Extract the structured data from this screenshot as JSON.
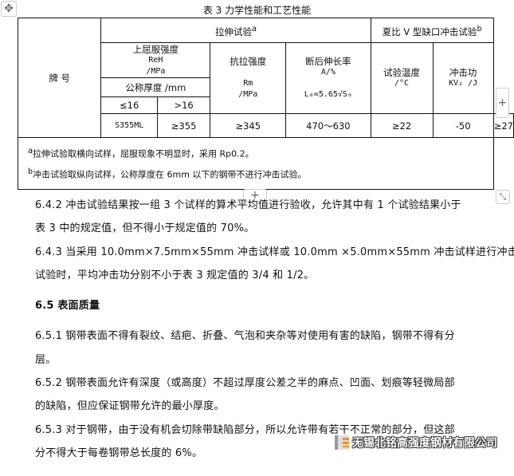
{
  "caption": "表 3  力学性能和工艺性能",
  "table": {
    "h_grade": "牌 号",
    "h_tensile": "拉伸试验",
    "h_tensile_sup": "a",
    "h_impact": "夏比 V 型缺口冲击试验",
    "h_impact_sup": "b",
    "h_yield": "上屈服强度",
    "h_yield_sym": "ReH",
    "h_yield_unit": "/MPa",
    "h_thickness": "公称厚度 /mm",
    "h_le16": "≤16",
    "h_gt16": ">16",
    "h_tensile_strength": "抗拉强度",
    "h_rm": "Rm",
    "h_rm_unit": "/MPa",
    "h_elong": "断后伸长率",
    "h_elong_unit": "A/%",
    "h_l0": "L₀=5.65√S₀",
    "h_temp": "试验温度",
    "h_temp_unit": "/°C",
    "h_energy": "冲击功",
    "h_energy_unit": "KV₂ /J",
    "row": [
      "S355ML",
      "≥355",
      "≥345",
      "470～630",
      "≥22",
      "-50",
      "≥27"
    ],
    "note_a_sup": "a",
    "note_a": "拉伸试验取横向试样，屈服现象不明显时，采用 Rp0.2。",
    "note_b_sup": "b",
    "note_b": "冲击试验取纵向试样，公称厚度在 6mm 以下的钢带不进行冲击试验。"
  },
  "paragraphs": [
    "6.4.2 冲击试验结果按一组 3 个试样的算术平均值进行验收，允许其中有 1 个试验结果小于",
    "表 3 中的规定值，但不得小于规定值的 70%。",
    "6.4.3 当采用 10.0mm×7.5mm×55mm 冲击试样或 10.0mm ×5.0mm×55mm 冲击试样进行冲击",
    "试验时，平均冲击功分别不小于表 3 规定值的 3/4 和 1/2。",
    "6.5  表面质量",
    "6.5.1 钢带表面不得有裂纹、结疤、折叠、气泡和夹杂等对使用有害的缺陷，钢带不得有分",
    "层。",
    "6.5.2 钢带表面允许有深度（或高度）不超过厚度公差之半的麻点、凹面、划痕等轻微局部",
    "的缺陷，但应保证钢带允许的最小厚度。",
    "6.5.3 对于钢带，由于没有机会切除带缺陷部分，所以允许带有若干不正常的部分，但这部",
    "分不得大于每卷钢带总长度的 6%。"
  ],
  "watermark": "无锡北铭高强度钢材有限公司",
  "handles": {
    "move": "✥",
    "add_right": "+",
    "add_below": "+",
    "resize": "⤡"
  }
}
